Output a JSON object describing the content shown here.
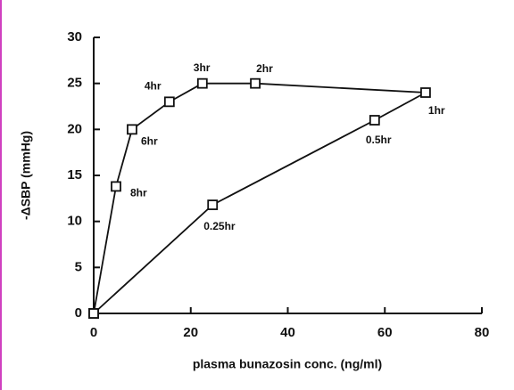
{
  "chart_data": {
    "type": "line",
    "x_label": "plasma bunazosin conc. (ng/ml)",
    "y_label": "-ΔSBP (mmHg)",
    "x": [
      0,
      24.5,
      57.9,
      68.4,
      33.3,
      22.4,
      15.6,
      7.9,
      4.6,
      0
    ],
    "values": [
      0,
      11.8,
      21,
      24,
      25,
      25,
      23,
      20,
      13.8,
      0
    ],
    "point_labels": [
      null,
      "0.25hr",
      "0.5hr",
      "1hr",
      "2hr",
      "3hr",
      "4hr",
      "6hr",
      "8hr",
      null
    ],
    "color": "#111111",
    "xlim": [
      0,
      80
    ],
    "xticks": [
      0,
      20,
      40,
      60,
      80
    ],
    "ylim": [
      0,
      30
    ],
    "yticks": [
      0,
      5,
      10,
      15,
      20,
      25,
      30
    ],
    "grid": false
  }
}
